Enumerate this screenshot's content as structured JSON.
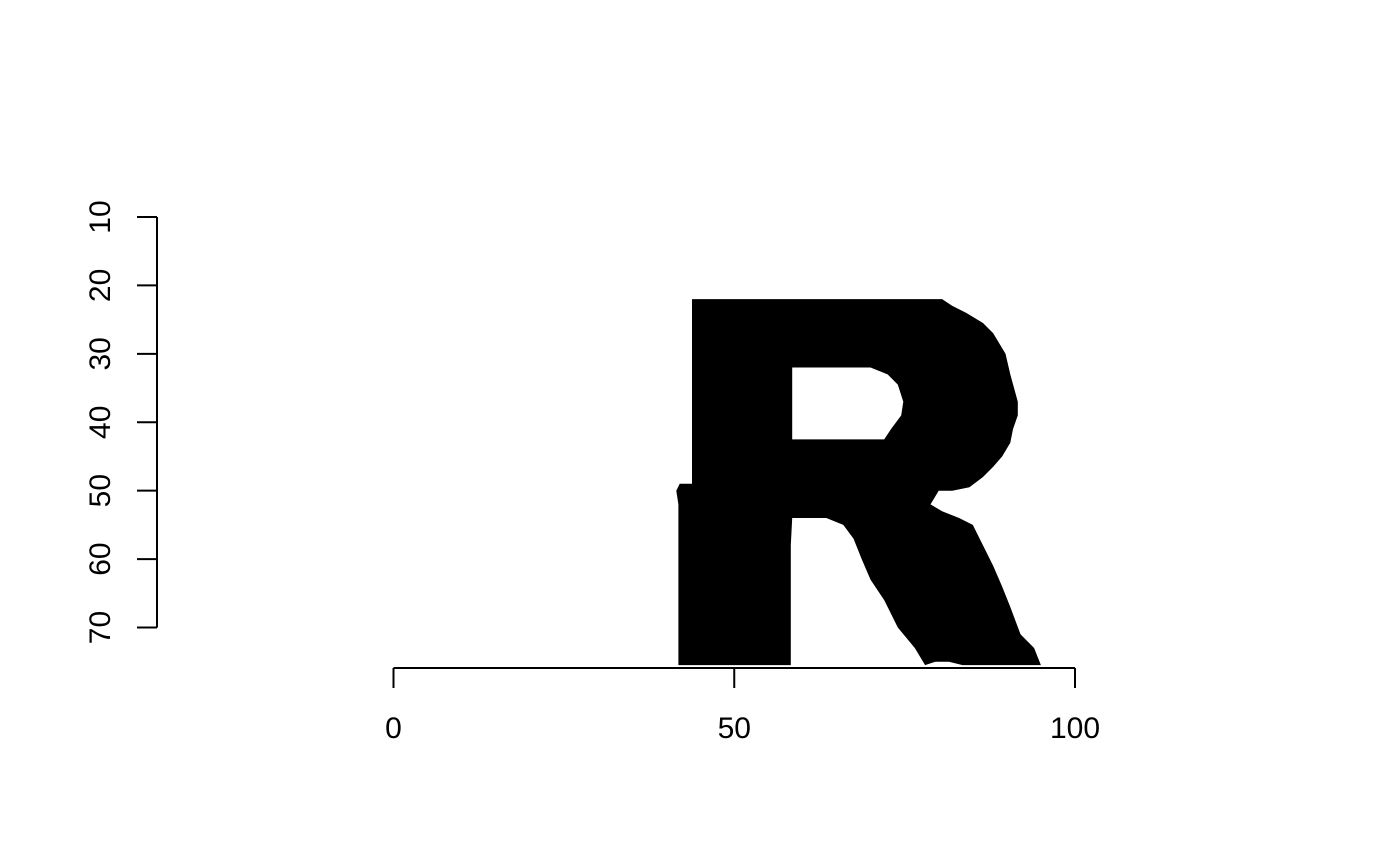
{
  "chart_data": {
    "type": "heatmap",
    "title": "",
    "xlabel": "",
    "ylabel": "",
    "xlim": [
      0,
      100
    ],
    "ylim": [
      10,
      70
    ],
    "y_reversed": true,
    "grid": false,
    "legend": "none",
    "colors": {
      "foreground": "#000000",
      "background": "#ffffff"
    },
    "x_ticks": [
      {
        "value": 0,
        "label": "0"
      },
      {
        "value": 50,
        "label": "50"
      },
      {
        "value": 100,
        "label": "100"
      }
    ],
    "y_ticks": [
      {
        "value": 10,
        "label": "10"
      },
      {
        "value": 20,
        "label": "20"
      },
      {
        "value": 30,
        "label": "30"
      },
      {
        "value": 40,
        "label": "40"
      },
      {
        "value": 50,
        "label": "50"
      },
      {
        "value": 60,
        "label": "60"
      },
      {
        "value": 70,
        "label": "70"
      }
    ],
    "shape": {
      "outer": [
        [
          43.8,
          22
        ],
        [
          80.5,
          22
        ],
        [
          82,
          23
        ],
        [
          84,
          24
        ],
        [
          86.5,
          25.5
        ],
        [
          88,
          27
        ],
        [
          89.8,
          30
        ],
        [
          90.5,
          33
        ],
        [
          91.6,
          37
        ],
        [
          91.6,
          39
        ],
        [
          90.9,
          41
        ],
        [
          90.5,
          43
        ],
        [
          89.3,
          45
        ],
        [
          88,
          46.5
        ],
        [
          86.5,
          48
        ],
        [
          84.5,
          49.5
        ],
        [
          82,
          50
        ],
        [
          80,
          50
        ],
        [
          78.8,
          52
        ],
        [
          80.5,
          53
        ],
        [
          83,
          54
        ],
        [
          85,
          55
        ],
        [
          86.5,
          58
        ],
        [
          88,
          61
        ],
        [
          89.3,
          64
        ],
        [
          90.5,
          67
        ],
        [
          92,
          71
        ],
        [
          94,
          73
        ],
        [
          95,
          75.5
        ],
        [
          83.5,
          75.5
        ],
        [
          81.5,
          75
        ],
        [
          79.5,
          75
        ],
        [
          78,
          75.5
        ],
        [
          76.5,
          73
        ],
        [
          74,
          70
        ],
        [
          72,
          66
        ],
        [
          70,
          63
        ],
        [
          68.7,
          60
        ],
        [
          67.5,
          57
        ],
        [
          66,
          55
        ],
        [
          63.5,
          54
        ],
        [
          58.5,
          54
        ],
        [
          58.3,
          58
        ],
        [
          58.3,
          75.5
        ],
        [
          41.8,
          75.5
        ],
        [
          41.8,
          52
        ],
        [
          41.5,
          50
        ],
        [
          42,
          49
        ],
        [
          43.8,
          49
        ]
      ],
      "hole": [
        [
          58.5,
          32
        ],
        [
          70,
          32
        ],
        [
          72.5,
          33
        ],
        [
          74,
          34.5
        ],
        [
          74.8,
          37
        ],
        [
          74.5,
          39
        ],
        [
          73,
          41
        ],
        [
          72,
          42.5
        ],
        [
          58.5,
          42.5
        ]
      ]
    }
  }
}
